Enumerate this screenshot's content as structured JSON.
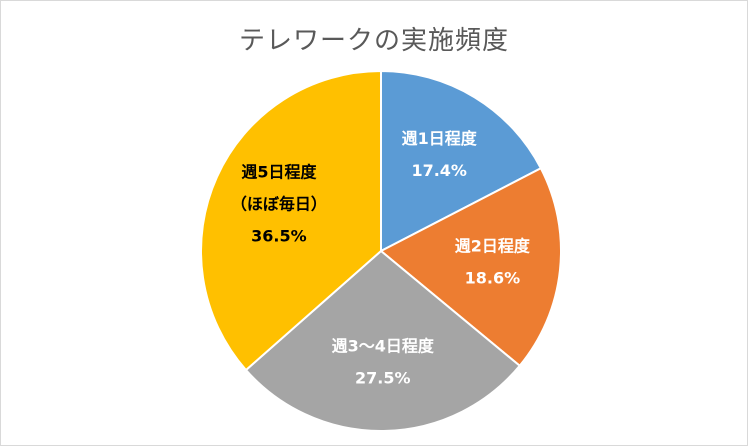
{
  "chart_data": {
    "type": "pie",
    "title": "テレワークの実施頻度",
    "slices": [
      {
        "label_lines": [
          "週1日程度"
        ],
        "value": 17.4,
        "value_label": "17.4%",
        "color": "#5b9bd5",
        "text_color": "#ffffff"
      },
      {
        "label_lines": [
          "週2日程度"
        ],
        "value": 18.6,
        "value_label": "18.6%",
        "color": "#ed7d31",
        "text_color": "#ffffff"
      },
      {
        "label_lines": [
          "週3～4日程度"
        ],
        "value": 27.5,
        "value_label": "27.5%",
        "color": "#a5a5a5",
        "text_color": "#ffffff"
      },
      {
        "label_lines": [
          "週5日程度",
          "（ほぼ毎日）"
        ],
        "value": 36.5,
        "value_label": "36.5%",
        "color": "#ffc000",
        "text_color": "#000000"
      }
    ],
    "start_angle": "12 o'clock",
    "direction": "clockwise",
    "legend": "none"
  }
}
